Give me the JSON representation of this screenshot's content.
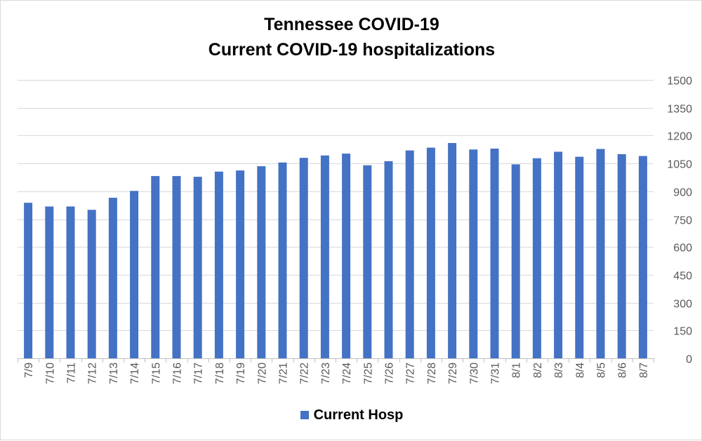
{
  "chart_data": {
    "type": "bar",
    "title": "Tennessee COVID-19",
    "subtitle": "Current COVID-19 hospitalizations",
    "categories": [
      "7/9",
      "7/10",
      "7/11",
      "7/12",
      "7/13",
      "7/14",
      "7/15",
      "7/16",
      "7/17",
      "7/18",
      "7/19",
      "7/20",
      "7/21",
      "7/22",
      "7/23",
      "7/24",
      "7/25",
      "7/26",
      "7/27",
      "7/28",
      "7/29",
      "7/30",
      "7/31",
      "8/1",
      "8/2",
      "8/3",
      "8/4",
      "8/5",
      "8/6",
      "8/7"
    ],
    "series": [
      {
        "name": "Current Hosp",
        "color": "#4472C4",
        "values": [
          838,
          818,
          818,
          800,
          865,
          902,
          982,
          982,
          978,
          1006,
          1012,
          1035,
          1055,
          1080,
          1093,
          1103,
          1040,
          1062,
          1120,
          1135,
          1160,
          1125,
          1130,
          1045,
          1078,
          1113,
          1086,
          1128,
          1100,
          1090
        ]
      }
    ],
    "ylim": [
      0,
      1500
    ],
    "y_ticks": [
      0,
      150,
      300,
      450,
      600,
      750,
      900,
      1050,
      1200,
      1350,
      1500
    ],
    "y_axis_side": "right",
    "grid": true,
    "legend": "bottom",
    "xlabel": "",
    "ylabel": ""
  }
}
